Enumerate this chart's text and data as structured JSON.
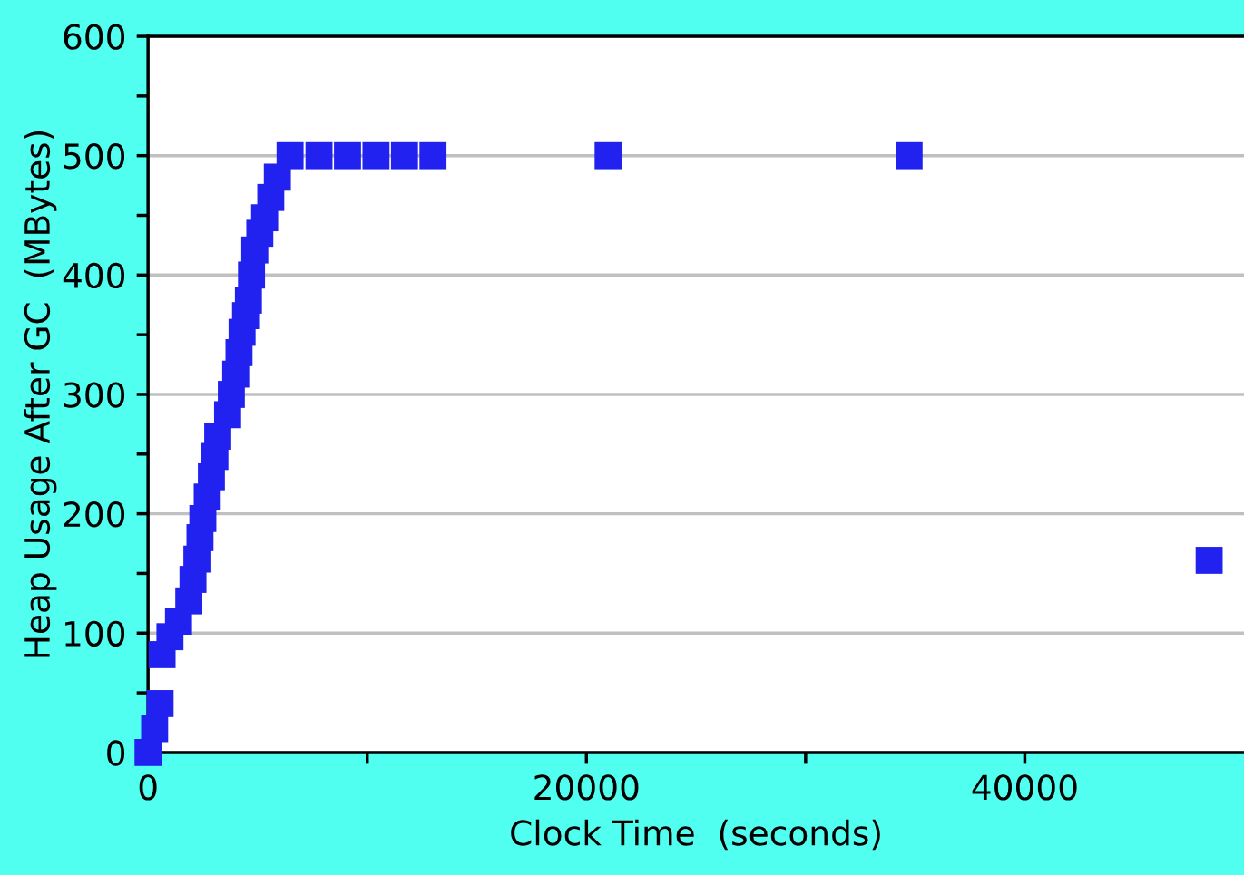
{
  "chart_data": {
    "type": "scatter",
    "xlabel": "Clock Time  (seconds)",
    "ylabel": "Heap Usage After GC  (MBytes)",
    "series": [
      {
        "color": "#2222f0",
        "x": [
          0,
          300,
          550,
          640,
          1000,
          1390,
          1860,
          2050,
          2230,
          2370,
          2500,
          2700,
          2890,
          3050,
          3180,
          3630,
          3800,
          4000,
          4150,
          4290,
          4450,
          4580,
          4720,
          4870,
          5100,
          5320,
          5600,
          5900,
          6480,
          7800,
          9100,
          10400,
          11700,
          13000,
          20990,
          34720,
          48410
        ],
        "values": [
          0,
          20,
          41,
          82,
          97,
          110,
          127,
          145,
          162,
          180,
          196,
          214,
          231,
          248,
          265,
          283,
          300,
          317,
          335,
          352,
          366,
          379,
          400,
          421,
          435,
          448,
          465,
          482,
          500,
          500,
          500,
          500,
          500,
          500,
          500,
          500,
          161
        ]
      }
    ],
    "marker": "square",
    "grid": "y",
    "xlim": [
      0,
      50000
    ],
    "xticks": [
      0,
      {
        "value": 10000,
        "label": null
      },
      20000,
      {
        "value": 30000,
        "label": null
      },
      40000
    ],
    "ylim": [
      0,
      600
    ],
    "yticks": [
      0,
      {
        "value": 50,
        "label": null
      },
      100,
      {
        "value": 150,
        "label": null
      },
      200,
      {
        "value": 250,
        "label": null
      },
      300,
      {
        "value": 350,
        "label": null
      },
      400,
      {
        "value": 450,
        "label": null
      },
      500,
      {
        "value": 550,
        "label": null
      },
      600
    ]
  }
}
